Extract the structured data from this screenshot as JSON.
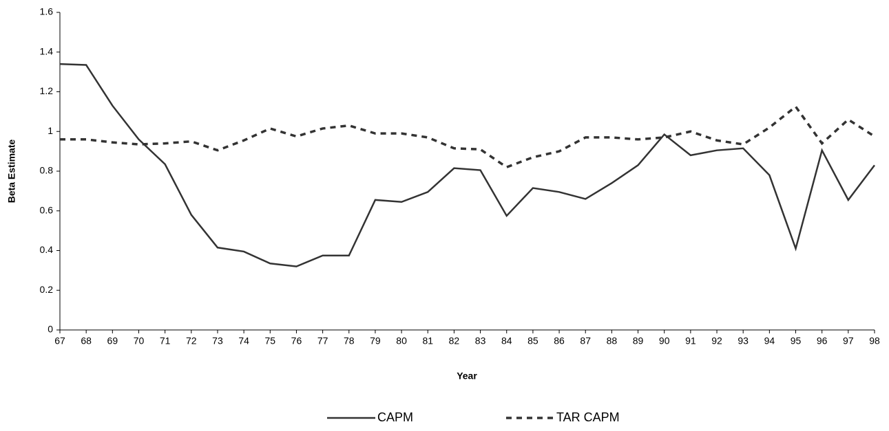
{
  "chart_data": {
    "type": "line",
    "x_label": "Year",
    "y_label": "Beta Estimate",
    "categories": [
      "67",
      "68",
      "69",
      "70",
      "71",
      "72",
      "73",
      "74",
      "75",
      "76",
      "77",
      "78",
      "79",
      "80",
      "81",
      "82",
      "83",
      "84",
      "85",
      "86",
      "87",
      "88",
      "89",
      "90",
      "91",
      "92",
      "93",
      "94",
      "95",
      "96",
      "97",
      "98"
    ],
    "series": [
      {
        "name": "CAPM",
        "color": "#333333",
        "style": "solid",
        "values": [
          1.34,
          1.335,
          1.13,
          0.96,
          0.835,
          0.58,
          0.415,
          0.395,
          0.335,
          0.32,
          0.375,
          0.375,
          0.655,
          0.645,
          0.695,
          0.815,
          0.805,
          0.575,
          0.715,
          0.695,
          0.66,
          0.74,
          0.83,
          0.985,
          0.88,
          0.905,
          0.915,
          0.78,
          0.41,
          0.905,
          0.655,
          0.83
        ]
      },
      {
        "name": "TAR CAPM",
        "color": "#333333",
        "style": "dashed",
        "values": [
          0.96,
          0.96,
          0.945,
          0.935,
          0.94,
          0.95,
          0.905,
          0.955,
          1.015,
          0.975,
          1.015,
          1.03,
          0.99,
          0.99,
          0.97,
          0.915,
          0.91,
          0.82,
          0.87,
          0.9,
          0.97,
          0.97,
          0.96,
          0.97,
          1.0,
          0.955,
          0.935,
          1.02,
          1.125,
          0.94,
          1.06,
          0.975
        ]
      }
    ],
    "ylim": [
      0,
      1.6
    ],
    "yticks": [
      0,
      0.2,
      0.4,
      0.6,
      0.8,
      1,
      1.2,
      1.4,
      1.6
    ],
    "grid": false,
    "legend": "bottom"
  }
}
